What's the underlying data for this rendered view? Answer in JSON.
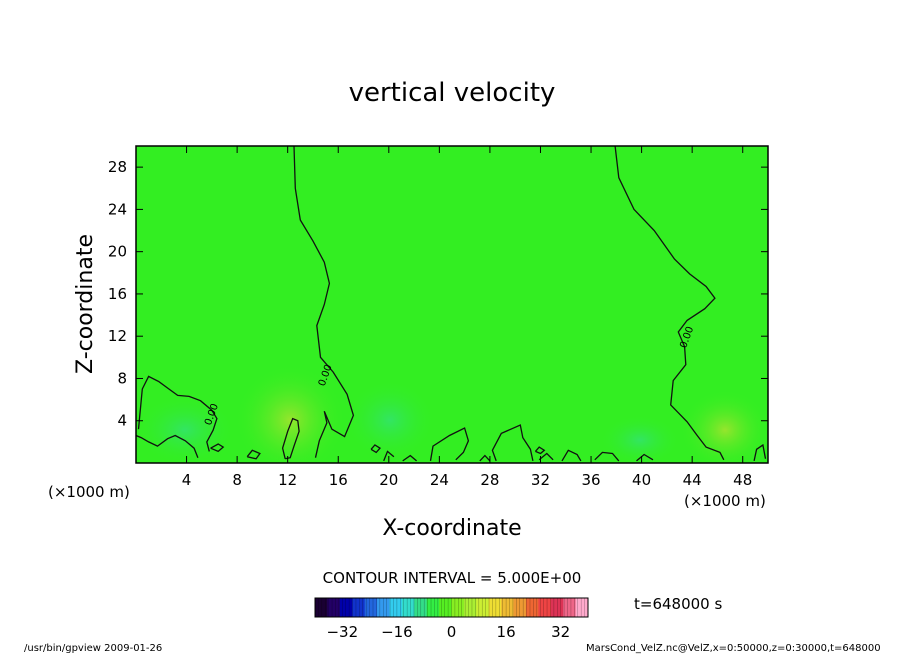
{
  "header": {
    "title": "vertical velocity"
  },
  "axes": {
    "xlabel": "X-coordinate",
    "ylabel": "Z-coordinate",
    "x_unit_left": "(×1000 m)",
    "x_unit_right": "(×1000 m)"
  },
  "footer": {
    "contour_interval": "CONTOUR INTERVAL = 5.000E+00",
    "time": "t=648000 s",
    "program": "/usr/bin/gpview  2009-01-26",
    "source": "MarsCond_VelZ.nc@VelZ,x=0:50000,z=0:30000,t=648000"
  },
  "colors": {
    "field": "#33ee22",
    "contour": "#111111",
    "colorbar": [
      "#1a0033",
      "#230066",
      "#0000aa",
      "#1133cc",
      "#2266dd",
      "#3399ee",
      "#33ccee",
      "#33ddcc",
      "#33dd88",
      "#33ee44",
      "#55ee22",
      "#88ee22",
      "#aaee33",
      "#ccee33",
      "#eedd33",
      "#eebb33",
      "#ee9933",
      "#ee6633",
      "#ee4444",
      "#dd3355",
      "#ee6688",
      "#ffaacc"
    ]
  },
  "chart_data": {
    "type": "heatmap",
    "title": "vertical velocity",
    "xlabel": "X-coordinate",
    "ylabel": "Z-coordinate",
    "xlim": [
      0,
      50
    ],
    "ylim": [
      0,
      30
    ],
    "x_ticks": [
      4,
      8,
      12,
      16,
      20,
      24,
      28,
      32,
      36,
      40,
      44,
      48
    ],
    "y_ticks": [
      4,
      8,
      12,
      16,
      20,
      24,
      28
    ],
    "contour_interval": 5.0,
    "contour_labels": [
      {
        "text": "0.00",
        "x": 6.2,
        "z": 4.5
      },
      {
        "text": "0.00",
        "x": 15.2,
        "z": 8.2
      },
      {
        "text": "0.00",
        "x": 43.8,
        "z": 11.8
      }
    ],
    "colorbar": {
      "range": [
        -40,
        40
      ],
      "ticks": [
        -32,
        -16,
        0,
        16,
        32
      ]
    },
    "contours": [
      {
        "level": 0,
        "points": [
          [
            12.5,
            30
          ],
          [
            12.6,
            26
          ],
          [
            13.0,
            23
          ],
          [
            14.0,
            21
          ],
          [
            14.9,
            19
          ],
          [
            15.3,
            17
          ],
          [
            14.9,
            15
          ],
          [
            14.3,
            13
          ],
          [
            14.6,
            10
          ],
          [
            15.6,
            8.6
          ],
          [
            16.7,
            6.5
          ],
          [
            17.2,
            4.5
          ],
          [
            16.5,
            2.5
          ],
          [
            15.5,
            3.2
          ],
          [
            14.9,
            4.9
          ],
          [
            15.1,
            3.8
          ],
          [
            14.5,
            2.1
          ],
          [
            14.2,
            0.5
          ]
        ]
      },
      {
        "level": 0,
        "points": [
          [
            37.9,
            30
          ],
          [
            38.2,
            27
          ],
          [
            39.4,
            24
          ],
          [
            41.0,
            22
          ],
          [
            42.6,
            19.3
          ],
          [
            43.8,
            17.9
          ],
          [
            45.1,
            16.7
          ],
          [
            45.8,
            15.6
          ],
          [
            45.0,
            14.6
          ],
          [
            43.6,
            13.5
          ],
          [
            42.9,
            12.4
          ],
          [
            43.4,
            11.0
          ],
          [
            43.5,
            9.3
          ],
          [
            42.5,
            7.8
          ],
          [
            42.3,
            5.5
          ],
          [
            43.6,
            3.9
          ],
          [
            44.4,
            2.6
          ],
          [
            45.1,
            1.5
          ],
          [
            46.2,
            1.0
          ],
          [
            46.5,
            0.3
          ]
        ]
      },
      {
        "level": 0,
        "points": [
          [
            0.2,
            3.2
          ],
          [
            0.5,
            7.0
          ],
          [
            1.0,
            8.2
          ],
          [
            1.8,
            7.7
          ],
          [
            2.6,
            7.0
          ],
          [
            3.3,
            6.4
          ],
          [
            4.2,
            6.3
          ],
          [
            5.1,
            5.9
          ],
          [
            6.0,
            5.0
          ],
          [
            6.4,
            4.2
          ],
          [
            6.1,
            3.1
          ],
          [
            5.6,
            2.0
          ],
          [
            5.8,
            1.1
          ]
        ]
      },
      {
        "level": 0,
        "points": [
          [
            0.0,
            2.6
          ],
          [
            0.4,
            2.4
          ],
          [
            1.0,
            2.0
          ],
          [
            1.7,
            1.6
          ],
          [
            2.5,
            2.3
          ],
          [
            3.1,
            2.6
          ],
          [
            3.9,
            2.1
          ],
          [
            4.6,
            1.4
          ],
          [
            4.9,
            0.5
          ]
        ]
      },
      {
        "level": 5,
        "points": [
          [
            11.8,
            0.4
          ],
          [
            11.6,
            1.4
          ],
          [
            12.0,
            3.0
          ],
          [
            12.4,
            4.2
          ],
          [
            12.8,
            4.0
          ],
          [
            12.9,
            3.0
          ],
          [
            12.5,
            1.6
          ],
          [
            12.2,
            0.5
          ],
          [
            11.8,
            0.4
          ]
        ]
      },
      {
        "level": 0,
        "points": [
          [
            23.3,
            0.2
          ],
          [
            23.5,
            1.6
          ],
          [
            24.8,
            2.6
          ],
          [
            26.0,
            3.3
          ],
          [
            26.3,
            2.1
          ],
          [
            25.9,
            1.0
          ],
          [
            25.3,
            0.3
          ]
        ]
      },
      {
        "level": 0,
        "points": [
          [
            28.5,
            0.2
          ],
          [
            28.2,
            1.2
          ],
          [
            28.9,
            2.8
          ],
          [
            30.4,
            3.6
          ],
          [
            30.6,
            2.4
          ],
          [
            31.2,
            1.3
          ],
          [
            31.4,
            0.2
          ]
        ]
      },
      {
        "level": 0,
        "points": [
          [
            19.6,
            0.2
          ],
          [
            19.9,
            1.1
          ],
          [
            20.4,
            0.6
          ]
        ]
      },
      {
        "level": 0,
        "points": [
          [
            33.7,
            0.2
          ],
          [
            34.2,
            1.2
          ],
          [
            34.9,
            0.8
          ],
          [
            35.2,
            0.2
          ]
        ]
      },
      {
        "level": 0,
        "points": [
          [
            48.9,
            0.2
          ],
          [
            49.1,
            1.3
          ],
          [
            49.6,
            1.7
          ],
          [
            49.8,
            0.4
          ]
        ]
      },
      {
        "level": 0,
        "points": [
          [
            36.3,
            0.3
          ],
          [
            36.9,
            1.0
          ],
          [
            37.7,
            0.9
          ],
          [
            38.2,
            0.2
          ]
        ]
      },
      {
        "level": 0,
        "points": [
          [
            39.6,
            0.2
          ],
          [
            40.2,
            0.8
          ],
          [
            40.9,
            0.3
          ]
        ]
      },
      {
        "level": 0,
        "points": [
          [
            21.1,
            0.2
          ],
          [
            21.7,
            0.7
          ],
          [
            22.2,
            0.2
          ]
        ]
      },
      {
        "level": 0,
        "points": [
          [
            27.2,
            0.2
          ],
          [
            27.6,
            0.7
          ],
          [
            28.0,
            0.2
          ]
        ]
      },
      {
        "level": 0,
        "points": [
          [
            31.9,
            0.3
          ],
          [
            32.5,
            0.9
          ],
          [
            33.0,
            0.3
          ]
        ]
      },
      {
        "level": 0,
        "points": [
          [
            5.9,
            1.4
          ],
          [
            6.5,
            1.1
          ],
          [
            6.9,
            1.5
          ],
          [
            6.5,
            1.8
          ],
          [
            5.9,
            1.4
          ]
        ]
      },
      {
        "level": 0,
        "points": [
          [
            18.6,
            1.3
          ],
          [
            19.0,
            1.0
          ],
          [
            19.3,
            1.4
          ],
          [
            18.9,
            1.7
          ],
          [
            18.6,
            1.3
          ]
        ]
      },
      {
        "level": 0,
        "points": [
          [
            8.8,
            0.6
          ],
          [
            9.5,
            0.4
          ],
          [
            9.8,
            0.9
          ],
          [
            9.2,
            1.2
          ],
          [
            8.8,
            0.6
          ]
        ]
      },
      {
        "level": 0,
        "points": [
          [
            31.6,
            1.1
          ],
          [
            32.0,
            0.9
          ],
          [
            32.3,
            1.2
          ],
          [
            31.9,
            1.5
          ],
          [
            31.6,
            1.1
          ]
        ]
      }
    ]
  }
}
